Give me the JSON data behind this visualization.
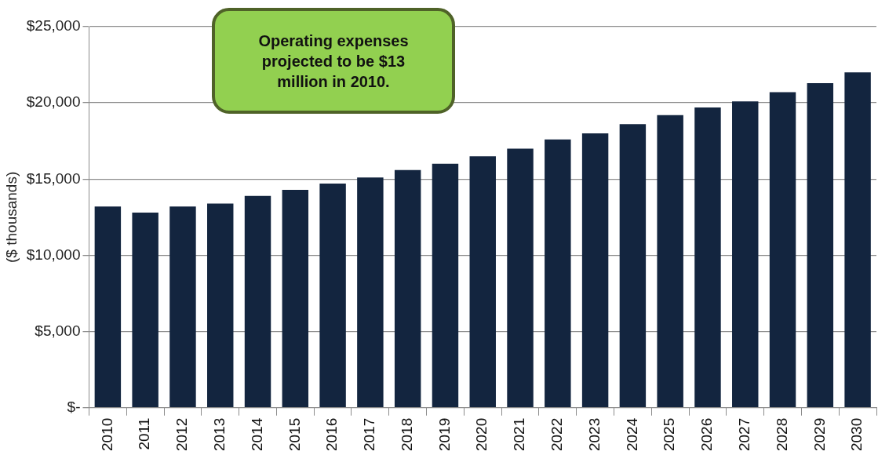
{
  "chart_data": {
    "type": "bar",
    "ylabel": "($ thousands)",
    "annotations": [
      "Operating expenses projected to be $13 million in 2010."
    ],
    "categories": [
      "2010",
      "2011",
      "2012",
      "2013",
      "2014",
      "2015",
      "2016",
      "2017",
      "2018",
      "2019",
      "2020",
      "2021",
      "2022",
      "2023",
      "2024",
      "2025",
      "2026",
      "2027",
      "2028",
      "2029",
      "2030"
    ],
    "values": [
      13200,
      12800,
      13200,
      13400,
      13900,
      14300,
      14700,
      15100,
      15600,
      16000,
      16500,
      17000,
      17600,
      18000,
      18600,
      19200,
      19700,
      20100,
      20700,
      21300,
      22000
    ],
    "color": "#13253f",
    "ylim": [
      0,
      25000
    ],
    "yticks": [
      {
        "value": 0,
        "label": "$-"
      },
      {
        "value": 5000,
        "label": "$5,000"
      },
      {
        "value": 10000,
        "label": "$10,000"
      },
      {
        "value": 15000,
        "label": "$15,000"
      },
      {
        "value": 20000,
        "label": "$20,000"
      },
      {
        "value": 25000,
        "label": "$25,000"
      }
    ],
    "grid": "y",
    "legend": false
  }
}
